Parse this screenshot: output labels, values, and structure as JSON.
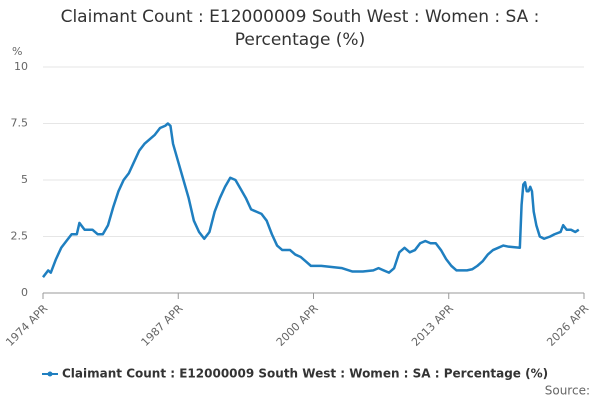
{
  "chart_data": {
    "type": "line",
    "title": "Claimant Count : E12000009 South West : Women : SA : Percentage (%)",
    "y_label": "%",
    "source": "Source:",
    "series": [
      {
        "name": "Claimant Count : E12000009 South West : Women : SA : Percentage (%)",
        "color": "#1f7fc0",
        "x": [
          "1974-04",
          "1974-10",
          "1975-01",
          "1975-07",
          "1976-01",
          "1976-07",
          "1977-01",
          "1977-07",
          "1977-10",
          "1978-04",
          "1979-01",
          "1979-07",
          "1980-01",
          "1980-07",
          "1981-01",
          "1981-07",
          "1982-01",
          "1982-07",
          "1983-01",
          "1983-07",
          "1984-01",
          "1984-07",
          "1985-01",
          "1985-07",
          "1986-01",
          "1986-04",
          "1986-07",
          "1986-10",
          "1987-04",
          "1987-10",
          "1988-04",
          "1988-10",
          "1989-04",
          "1989-10",
          "1990-04",
          "1990-10",
          "1991-04",
          "1991-10",
          "1992-04",
          "1992-10",
          "1993-04",
          "1993-10",
          "1994-04",
          "1994-10",
          "1995-04",
          "1995-10",
          "1996-04",
          "1996-10",
          "1997-04",
          "1998-01",
          "1998-07",
          "1999-01",
          "1999-07",
          "2000-01",
          "2001-01",
          "2002-01",
          "2003-01",
          "2004-01",
          "2005-01",
          "2006-01",
          "2006-07",
          "2007-07",
          "2008-01",
          "2008-07",
          "2009-01",
          "2009-07",
          "2010-01",
          "2010-07",
          "2011-01",
          "2011-07",
          "2012-01",
          "2012-07",
          "2013-01",
          "2013-07",
          "2014-01",
          "2015-01",
          "2015-07",
          "2016-01",
          "2016-07",
          "2017-01",
          "2017-07",
          "2018-01",
          "2018-07",
          "2019-01",
          "2020-02",
          "2020-04",
          "2020-06",
          "2020-08",
          "2020-10",
          "2020-12",
          "2021-02",
          "2021-04",
          "2021-06",
          "2021-09",
          "2022-01",
          "2022-06",
          "2023-01",
          "2023-06",
          "2024-01",
          "2024-04",
          "2024-08",
          "2025-01",
          "2025-06",
          "2025-10"
        ],
        "values": [
          0.7,
          1.0,
          0.9,
          1.5,
          2.0,
          2.3,
          2.6,
          2.6,
          3.1,
          2.8,
          2.8,
          2.6,
          2.6,
          3.0,
          3.8,
          4.5,
          5.0,
          5.3,
          5.8,
          6.3,
          6.6,
          6.8,
          7.0,
          7.3,
          7.4,
          7.5,
          7.4,
          6.6,
          5.8,
          5.0,
          4.2,
          3.2,
          2.7,
          2.4,
          2.7,
          3.6,
          4.2,
          4.7,
          5.1,
          5.0,
          4.6,
          4.2,
          3.7,
          3.6,
          3.5,
          3.2,
          2.6,
          2.1,
          1.9,
          1.9,
          1.7,
          1.6,
          1.4,
          1.2,
          1.2,
          1.15,
          1.1,
          0.95,
          0.95,
          1.0,
          1.1,
          0.9,
          1.1,
          1.8,
          2.0,
          1.8,
          1.9,
          2.2,
          2.3,
          2.2,
          2.2,
          1.9,
          1.5,
          1.2,
          1.0,
          1.0,
          1.05,
          1.2,
          1.4,
          1.7,
          1.9,
          2.0,
          2.1,
          2.05,
          2.0,
          3.9,
          4.8,
          4.9,
          4.5,
          4.5,
          4.7,
          4.5,
          3.6,
          3.0,
          2.5,
          2.4,
          2.5,
          2.6,
          2.7,
          3.0,
          2.8,
          2.8,
          2.7,
          2.8
        ]
      }
    ],
    "xlim": [
      "1974-04",
      "2026-04"
    ],
    "xticks": [
      {
        "value": "1974-04",
        "label": "1974 APR"
      },
      {
        "value": "1987-04",
        "label": "1987 APR"
      },
      {
        "value": "2000-04",
        "label": "2000 APR"
      },
      {
        "value": "2013-04",
        "label": "2013 APR"
      },
      {
        "value": "2026-04",
        "label": "2026 APR"
      }
    ],
    "ylim": [
      0,
      10
    ],
    "yticks": [
      0,
      2.5,
      5,
      7.5,
      10
    ],
    "grid": true
  }
}
